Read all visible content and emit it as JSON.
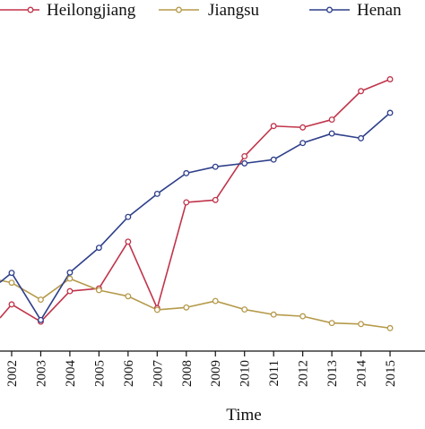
{
  "chart_data": {
    "type": "line",
    "xlabel": "Time",
    "x": [
      "2002",
      "2003",
      "2004",
      "2005",
      "2006",
      "2007",
      "2008",
      "2009",
      "2010",
      "2011",
      "2012",
      "2013",
      "2014",
      "2015"
    ],
    "x_visible_range": [
      2001.6,
      2016.2
    ],
    "ylabel": "",
    "grid": false,
    "legend_position": "top",
    "series": [
      {
        "name": "Heilongjiang",
        "color": "#c0344a",
        "values": [
          1.06,
          0.55,
          1.45,
          1.53,
          2.91,
          0.95,
          4.07,
          4.14,
          5.43,
          6.32,
          6.28,
          6.51,
          7.35,
          7.7
        ]
      },
      {
        "name": "Jiangsu",
        "color": "#b59a4a",
        "values": [
          1.7,
          1.2,
          1.82,
          1.48,
          1.3,
          0.9,
          0.97,
          1.16,
          0.91,
          0.76,
          0.71,
          0.51,
          0.48,
          0.36
        ]
      },
      {
        "name": "Henan",
        "color": "#2e3f8a",
        "values": [
          1.99,
          0.6,
          2.0,
          2.73,
          3.64,
          4.32,
          4.93,
          5.12,
          5.22,
          5.33,
          5.82,
          6.1,
          5.96,
          6.71
        ]
      }
    ],
    "left_edge_values": {
      "Heilongjiang": 0.66,
      "Jiangsu": 1.77,
      "Henan": 1.71
    }
  }
}
